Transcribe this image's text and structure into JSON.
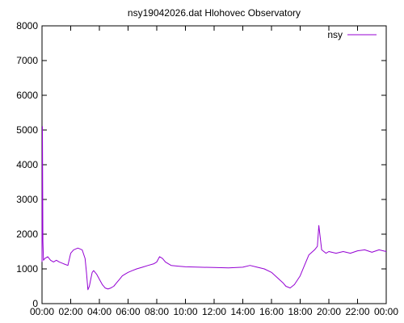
{
  "chart_data": {
    "type": "line",
    "title": "nsy19042026.dat Hlohovec Observatory",
    "xlabel": "",
    "ylabel": "",
    "x_ticks": [
      "00:00",
      "02:00",
      "04:00",
      "06:00",
      "08:00",
      "10:00",
      "12:00",
      "14:00",
      "16:00",
      "18:00",
      "20:00",
      "22:00",
      "00:00"
    ],
    "y_ticks": [
      "0",
      "1000",
      "2000",
      "3000",
      "4000",
      "5000",
      "6000",
      "7000",
      "8000"
    ],
    "xlim_hours": [
      0,
      24
    ],
    "ylim": [
      0,
      8000
    ],
    "grid": false,
    "legend_position": "top-right",
    "series": [
      {
        "name": "nsy",
        "color": "#9400d3",
        "x_hours": [
          0,
          0.03,
          0.06,
          0.1,
          0.2,
          0.4,
          0.6,
          0.8,
          1.0,
          1.2,
          1.5,
          1.8,
          2.0,
          2.2,
          2.5,
          2.8,
          3.0,
          3.1,
          3.2,
          3.3,
          3.4,
          3.5,
          3.6,
          3.7,
          3.8,
          4.0,
          4.2,
          4.4,
          4.6,
          4.8,
          5.0,
          5.2,
          5.4,
          5.6,
          5.8,
          6.0,
          6.3,
          6.6,
          7.0,
          7.4,
          7.8,
          8.0,
          8.2,
          8.4,
          8.6,
          8.8,
          9.0,
          9.5,
          10.0,
          11.0,
          12.0,
          13.0,
          14.0,
          14.5,
          15.0,
          15.5,
          16.0,
          16.4,
          16.8,
          17.0,
          17.3,
          17.6,
          18.0,
          18.3,
          18.6,
          19.0,
          19.2,
          19.3,
          19.5,
          19.8,
          20.0,
          20.5,
          21.0,
          21.5,
          22.0,
          22.5,
          23.0,
          23.5,
          24.0
        ],
        "y": [
          1200,
          5100,
          1800,
          1250,
          1300,
          1350,
          1250,
          1200,
          1250,
          1200,
          1150,
          1100,
          1450,
          1550,
          1600,
          1550,
          1300,
          900,
          400,
          500,
          700,
          900,
          950,
          900,
          850,
          700,
          550,
          450,
          420,
          450,
          500,
          600,
          700,
          800,
          850,
          900,
          950,
          1000,
          1050,
          1100,
          1150,
          1200,
          1350,
          1300,
          1200,
          1150,
          1100,
          1080,
          1060,
          1050,
          1040,
          1030,
          1050,
          1100,
          1050,
          1000,
          900,
          750,
          600,
          500,
          450,
          550,
          800,
          1100,
          1400,
          1550,
          1650,
          2250,
          1550,
          1450,
          1500,
          1450,
          1500,
          1450,
          1520,
          1550,
          1480,
          1550,
          1500
        ]
      }
    ]
  }
}
